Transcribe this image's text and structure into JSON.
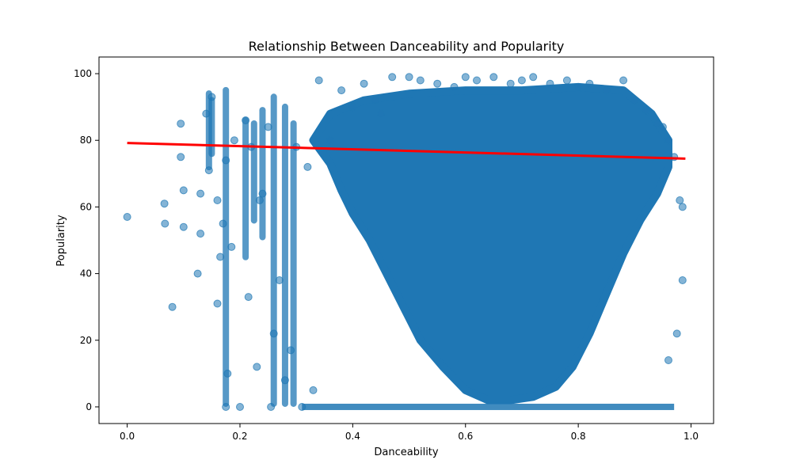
{
  "chart_data": {
    "type": "scatter",
    "title": "Relationship Between Danceability and Popularity",
    "xlabel": "Danceability",
    "ylabel": "Popularity",
    "xlim": [
      -0.05,
      1.04
    ],
    "ylim": [
      -5,
      105
    ],
    "xticks": [
      0.0,
      0.2,
      0.4,
      0.6,
      0.8,
      1.0
    ],
    "xtick_labels": [
      "0.0",
      "0.2",
      "0.4",
      "0.6",
      "0.8",
      "1.0"
    ],
    "yticks": [
      0,
      20,
      40,
      60,
      80,
      100
    ],
    "ytick_labels": [
      "0",
      "20",
      "40",
      "60",
      "80",
      "100"
    ],
    "grid": false,
    "legend": "none",
    "colors": {
      "points": "#1f77b4",
      "trend": "#ff0000"
    },
    "series": [
      {
        "kind": "points",
        "x": [
          0.0,
          0.066,
          0.067,
          0.08,
          0.095,
          0.1,
          0.1,
          0.095,
          0.13,
          0.125,
          0.13,
          0.14,
          0.15,
          0.145,
          0.16,
          0.16,
          0.165,
          0.17,
          0.175,
          0.175,
          0.178,
          0.185,
          0.19,
          0.2,
          0.21,
          0.215,
          0.22,
          0.23,
          0.235,
          0.24,
          0.25,
          0.255,
          0.26,
          0.27,
          0.28,
          0.29,
          0.3,
          0.31,
          0.32,
          0.33,
          0.34,
          0.36,
          0.38,
          0.4,
          0.42,
          0.44,
          0.45,
          0.47,
          0.5,
          0.52,
          0.55,
          0.58,
          0.6,
          0.62,
          0.65,
          0.68,
          0.7,
          0.72,
          0.75,
          0.78,
          0.8,
          0.82,
          0.85,
          0.88,
          0.9,
          0.92,
          0.94,
          0.95,
          0.96,
          0.97,
          0.98,
          0.985,
          0.985,
          0.975,
          0.96
        ],
        "y": [
          57,
          61,
          55,
          30,
          85,
          65,
          54,
          75,
          64,
          40,
          52,
          88,
          93,
          71,
          62,
          31,
          45,
          55,
          74,
          0,
          10,
          48,
          80,
          0,
          86,
          33,
          78,
          12,
          62,
          64,
          84,
          0,
          22,
          38,
          8,
          17,
          78,
          0,
          72,
          5,
          98,
          80,
          95,
          90,
          97,
          92,
          88,
          99,
          99,
          98,
          97,
          96,
          99,
          98,
          99,
          97,
          98,
          99,
          97,
          98,
          96,
          97,
          95,
          98,
          92,
          89,
          85,
          84,
          80,
          75,
          62,
          60,
          38,
          22,
          14
        ]
      },
      {
        "kind": "trend",
        "x": [
          0.0,
          0.99
        ],
        "y": [
          79.2,
          74.5
        ]
      }
    ]
  }
}
